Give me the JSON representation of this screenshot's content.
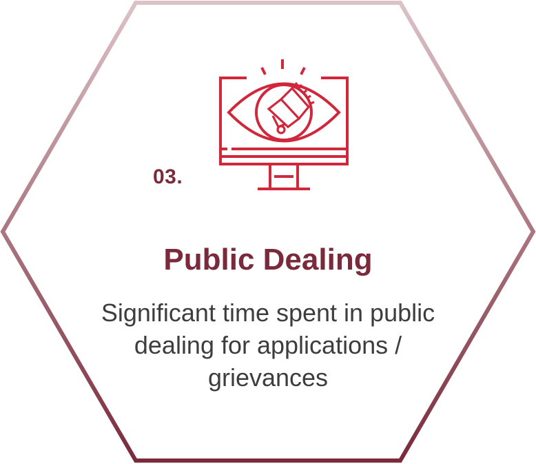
{
  "card": {
    "number": "03.",
    "title": "Public Dealing",
    "description": "Significant time spent in public dealing for applications / grievances"
  },
  "icons": {
    "main": "monitor-eye-megaphone-icon"
  },
  "colors": {
    "accent": "#7a2a3b",
    "icon": "#d0273b",
    "text": "#3d3d3d",
    "border_top": "#dcc2c7",
    "border_bottom": "#7a2a3b"
  }
}
